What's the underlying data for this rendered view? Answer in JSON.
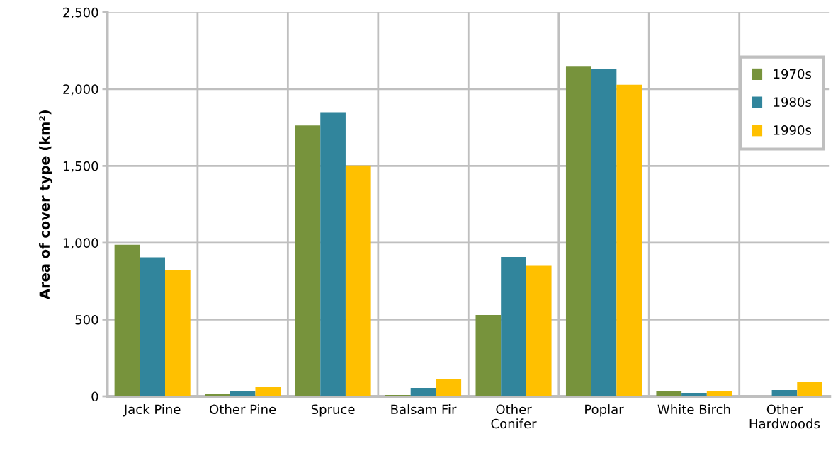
{
  "chart_data": {
    "type": "bar",
    "ylabel": "Area of cover type (km²)",
    "categories": [
      "Jack Pine",
      "Other Pine",
      "Spruce",
      "Balsam Fir",
      "Other\nConifer",
      "Poplar",
      "White Birch",
      "Other\nHardwoods"
    ],
    "series": [
      {
        "name": "1970s",
        "color": "#77933c",
        "values": [
          987,
          14,
          1763,
          9,
          530,
          2150,
          32,
          0
        ]
      },
      {
        "name": "1980s",
        "color": "#31859c",
        "values": [
          905,
          32,
          1849,
          55,
          908,
          2132,
          23,
          41
        ]
      },
      {
        "name": "1990s",
        "color": "#ffc000",
        "values": [
          822,
          60,
          1503,
          113,
          850,
          2028,
          32,
          92
        ]
      }
    ],
    "ylim": [
      0,
      2500
    ],
    "yticks": [
      {
        "value": 0,
        "label": "0"
      },
      {
        "value": 500,
        "label": "500"
      },
      {
        "value": 1000,
        "label": "1,000"
      },
      {
        "value": 1500,
        "label": "1,500"
      },
      {
        "value": 2000,
        "label": "2,000"
      },
      {
        "value": 2500,
        "label": "2,500"
      }
    ],
    "grid": true,
    "legend": "top right"
  }
}
